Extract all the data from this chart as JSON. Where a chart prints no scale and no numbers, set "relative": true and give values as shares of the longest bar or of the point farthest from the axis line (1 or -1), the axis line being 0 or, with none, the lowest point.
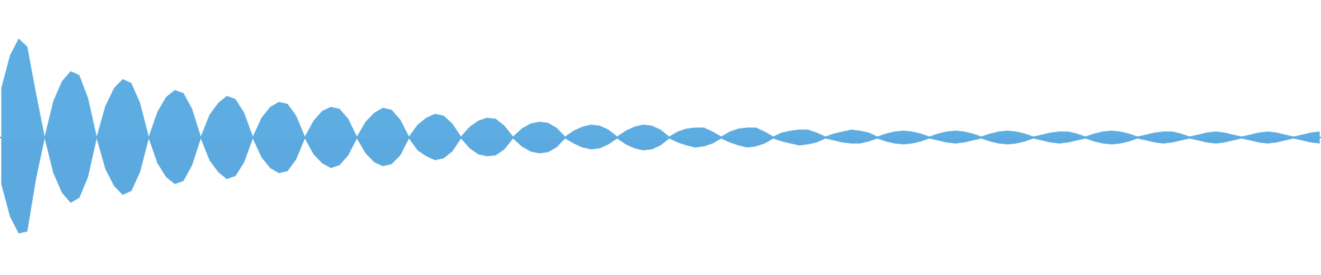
{
  "chart_data": {
    "type": "area",
    "relative": true,
    "categories": [
      null,
      null,
      null,
      null,
      null,
      null,
      null,
      null,
      null,
      null,
      null,
      null,
      null,
      null,
      null,
      null,
      null,
      null,
      null,
      null,
      null,
      null,
      null,
      null,
      null,
      null,
      null,
      null,
      null,
      null,
      null,
      null,
      null,
      null,
      null,
      null,
      null,
      null,
      null,
      null,
      null,
      null,
      null,
      null,
      null,
      null,
      null,
      null,
      null,
      null,
      null,
      null,
      null,
      null,
      null,
      null,
      null,
      null,
      null,
      null,
      null,
      null,
      null,
      null,
      null,
      null,
      null,
      null,
      null,
      null,
      null,
      null,
      null,
      null,
      null,
      null,
      null,
      null,
      null,
      null,
      null,
      null,
      null,
      null,
      null,
      null,
      null,
      null,
      null,
      null,
      null,
      null,
      null,
      null,
      null,
      null,
      null,
      null,
      null,
      null,
      null,
      null,
      null,
      null,
      null,
      null,
      null,
      null,
      null,
      null,
      null,
      null,
      null,
      null,
      null,
      null,
      null,
      null,
      null,
      null,
      null,
      null,
      null,
      null,
      null,
      null,
      null,
      null,
      null,
      null,
      null,
      null,
      null,
      null,
      null,
      null,
      null,
      null,
      null,
      null,
      null,
      null,
      null,
      null,
      null,
      null,
      null,
      null,
      null,
      null,
      null,
      null,
      null
    ],
    "series": [
      {
        "color": "#5dade2",
        "values": [
          0.5,
          0.83,
          1.0,
          0.92,
          0.45,
          0.01,
          0.37,
          0.57,
          0.67,
          0.63,
          0.4,
          0.01,
          0.32,
          0.5,
          0.59,
          0.55,
          0.35,
          0.01,
          0.26,
          0.41,
          0.48,
          0.45,
          0.29,
          0.01,
          0.23,
          0.35,
          0.42,
          0.39,
          0.25,
          0.01,
          0.2,
          0.31,
          0.36,
          0.34,
          0.22,
          0.01,
          0.17,
          0.27,
          0.31,
          0.29,
          0.19,
          0.01,
          0.16,
          0.25,
          0.3,
          0.28,
          0.18,
          0.01,
          0.13,
          0.2,
          0.24,
          0.22,
          0.14,
          0.01,
          0.11,
          0.17,
          0.2,
          0.19,
          0.12,
          0.01,
          0.09,
          0.14,
          0.16,
          0.15,
          0.1,
          0.01,
          0.07,
          0.11,
          0.13,
          0.12,
          0.08,
          0.01,
          0.07,
          0.11,
          0.13,
          0.12,
          0.08,
          0.01,
          0.06,
          0.09,
          0.1,
          0.1,
          0.06,
          0.01,
          0.06,
          0.09,
          0.1,
          0.1,
          0.06,
          0.01,
          0.05,
          0.07,
          0.08,
          0.08,
          0.05,
          0.01,
          0.04,
          0.06,
          0.08,
          0.07,
          0.05,
          0.01,
          0.04,
          0.06,
          0.07,
          0.06,
          0.04,
          0.01,
          0.04,
          0.06,
          0.07,
          0.06,
          0.04,
          0.01,
          0.04,
          0.06,
          0.07,
          0.06,
          0.04,
          0.01,
          0.03,
          0.05,
          0.06,
          0.06,
          0.04,
          0.01,
          0.04,
          0.06,
          0.07,
          0.06,
          0.04,
          0.01,
          0.03,
          0.05,
          0.06,
          0.06,
          0.04,
          0.01,
          0.03,
          0.05,
          0.06,
          0.05,
          0.03,
          0.01,
          0.03,
          0.05,
          0.06,
          0.05,
          0.03,
          0.01,
          0.03,
          0.05,
          0.06
        ]
      },
      {
        "color": "#5ba9df",
        "values": [
          -0.47,
          -0.8,
          -0.97,
          -0.95,
          -0.42,
          -0.01,
          -0.36,
          -0.56,
          -0.66,
          -0.61,
          -0.4,
          -0.01,
          -0.32,
          -0.49,
          -0.58,
          -0.54,
          -0.35,
          -0.01,
          -0.26,
          -0.4,
          -0.47,
          -0.44,
          -0.28,
          -0.01,
          -0.23,
          -0.35,
          -0.42,
          -0.39,
          -0.25,
          -0.01,
          -0.2,
          -0.31,
          -0.36,
          -0.34,
          -0.22,
          -0.01,
          -0.17,
          -0.26,
          -0.31,
          -0.28,
          -0.18,
          -0.01,
          -0.16,
          -0.25,
          -0.29,
          -0.27,
          -0.18,
          -0.01,
          -0.13,
          -0.19,
          -0.23,
          -0.21,
          -0.14,
          -0.01,
          -0.11,
          -0.17,
          -0.19,
          -0.18,
          -0.12,
          -0.01,
          -0.09,
          -0.14,
          -0.16,
          -0.15,
          -0.1,
          -0.01,
          -0.06,
          -0.1,
          -0.12,
          -0.11,
          -0.07,
          -0.01,
          -0.07,
          -0.11,
          -0.13,
          -0.12,
          -0.08,
          -0.01,
          -0.05,
          -0.08,
          -0.1,
          -0.09,
          -0.06,
          -0.01,
          -0.05,
          -0.08,
          -0.1,
          -0.09,
          -0.06,
          -0.01,
          -0.04,
          -0.06,
          -0.08,
          -0.07,
          -0.05,
          -0.01,
          -0.03,
          -0.05,
          -0.06,
          -0.06,
          -0.04,
          -0.01,
          -0.04,
          -0.06,
          -0.07,
          -0.06,
          -0.04,
          -0.01,
          -0.03,
          -0.05,
          -0.06,
          -0.05,
          -0.03,
          -0.01,
          -0.04,
          -0.06,
          -0.07,
          -0.06,
          -0.04,
          -0.01,
          -0.03,
          -0.05,
          -0.06,
          -0.05,
          -0.03,
          -0.01,
          -0.04,
          -0.06,
          -0.07,
          -0.06,
          -0.04,
          -0.01,
          -0.03,
          -0.05,
          -0.06,
          -0.05,
          -0.03,
          -0.01,
          -0.03,
          -0.05,
          -0.06,
          -0.05,
          -0.03,
          -0.01,
          -0.03,
          -0.05,
          -0.06,
          -0.05,
          -0.03,
          -0.01,
          -0.03,
          -0.05,
          -0.06
        ]
      }
    ],
    "ref_lines": [
      {
        "axis": "y",
        "value": 0,
        "color": "#5dade2"
      }
    ]
  }
}
